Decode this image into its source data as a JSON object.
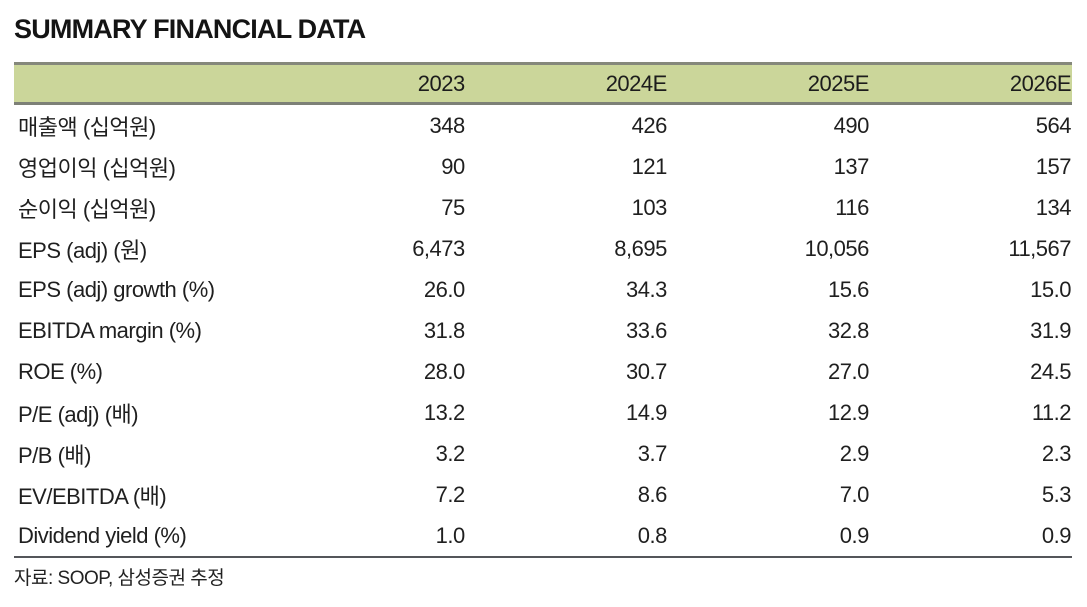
{
  "page": {
    "title": "SUMMARY FINANCIAL DATA",
    "source_note": "자료: SOOP, 삼성증권 추정"
  },
  "colors": {
    "header_background": "#cbd69a",
    "header_border": "#85887b",
    "table_bottom_border": "#54565a",
    "text": "#1f1f1f"
  },
  "table": {
    "label_header": "",
    "column_headers": [
      "2023",
      "2024E",
      "2025E",
      "2026E"
    ],
    "rows": [
      {
        "label": "매출액 (십억원)",
        "values": [
          "348",
          "426",
          "490",
          "564"
        ]
      },
      {
        "label": "영업이익 (십억원)",
        "values": [
          "90",
          "121",
          "137",
          "157"
        ]
      },
      {
        "label": "순이익 (십억원)",
        "values": [
          "75",
          "103",
          "116",
          "134"
        ]
      },
      {
        "label": "EPS (adj) (원)",
        "values": [
          "6,473",
          "8,695",
          "10,056",
          "11,567"
        ]
      },
      {
        "label": "EPS (adj) growth (%)",
        "values": [
          "26.0",
          "34.3",
          "15.6",
          "15.0"
        ]
      },
      {
        "label": "EBITDA margin (%)",
        "values": [
          "31.8",
          "33.6",
          "32.8",
          "31.9"
        ]
      },
      {
        "label": "ROE (%)",
        "values": [
          "28.0",
          "30.7",
          "27.0",
          "24.5"
        ]
      },
      {
        "label": "P/E (adj) (배)",
        "values": [
          "13.2",
          "14.9",
          "12.9",
          "11.2"
        ]
      },
      {
        "label": "P/B (배)",
        "values": [
          "3.2",
          "3.7",
          "2.9",
          "2.3"
        ]
      },
      {
        "label": "EV/EBITDA (배)",
        "values": [
          "7.2",
          "8.6",
          "7.0",
          "5.3"
        ]
      },
      {
        "label": "Dividend yield (%)",
        "values": [
          "1.0",
          "0.8",
          "0.9",
          "0.9"
        ]
      }
    ]
  }
}
